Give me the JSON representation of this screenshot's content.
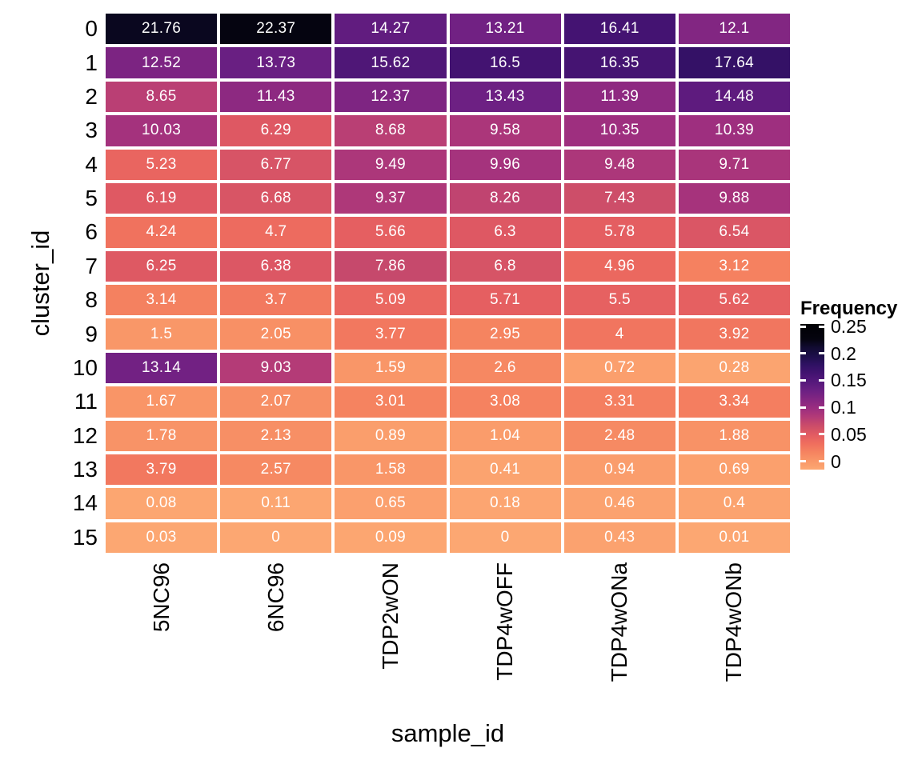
{
  "figure": {
    "background": "#ffffff"
  },
  "chart_data": {
    "type": "heatmap",
    "title": "",
    "xlabel": "sample_id",
    "ylabel": "cluster_id",
    "x_categories": [
      "5NC96",
      "6NC96",
      "TDP2wON",
      "TDP4wOFF",
      "TDP4wONa",
      "TDP4wONb"
    ],
    "y_categories": [
      "0",
      "1",
      "2",
      "3",
      "4",
      "5",
      "6",
      "7",
      "8",
      "9",
      "10",
      "11",
      "12",
      "13",
      "14",
      "15"
    ],
    "values": [
      [
        "21.76",
        "22.37",
        "14.27",
        "13.21",
        "16.41",
        "12.1"
      ],
      [
        "12.52",
        "13.73",
        "15.62",
        "16.5",
        "16.35",
        "17.64"
      ],
      [
        "8.65",
        "11.43",
        "12.37",
        "13.43",
        "11.39",
        "14.48"
      ],
      [
        "10.03",
        "6.29",
        "8.68",
        "9.58",
        "10.35",
        "10.39"
      ],
      [
        "5.23",
        "6.77",
        "9.49",
        "9.96",
        "9.48",
        "9.71"
      ],
      [
        "6.19",
        "6.68",
        "9.37",
        "8.26",
        "7.43",
        "9.88"
      ],
      [
        "4.24",
        "4.7",
        "5.66",
        "6.3",
        "5.78",
        "6.54"
      ],
      [
        "6.25",
        "6.38",
        "7.86",
        "6.8",
        "4.96",
        "3.12"
      ],
      [
        "3.14",
        "3.7",
        "5.09",
        "5.71",
        "5.5",
        "5.62"
      ],
      [
        "1.5",
        "2.05",
        "3.77",
        "2.95",
        "4",
        "3.92"
      ],
      [
        "13.14",
        "9.03",
        "1.59",
        "2.6",
        "0.72",
        "0.28"
      ],
      [
        "1.67",
        "2.07",
        "3.01",
        "3.08",
        "3.31",
        "3.34"
      ],
      [
        "1.78",
        "2.13",
        "0.89",
        "1.04",
        "2.48",
        "1.88"
      ],
      [
        "3.79",
        "2.57",
        "1.58",
        "0.41",
        "0.94",
        "0.69"
      ],
      [
        "0.08",
        "0.11",
        "0.65",
        "0.18",
        "0.46",
        "0.4"
      ],
      [
        "0.03",
        "0",
        "0.09",
        "0",
        "0.43",
        "0.01"
      ]
    ],
    "legend": {
      "title": "Frequency",
      "ticks": [
        "0.25",
        "0.2",
        "0.15",
        "0.1",
        "0.05",
        "0"
      ],
      "range": [
        0,
        0.25
      ],
      "position": "right"
    },
    "colormap": {
      "name": "magma-reversed",
      "unit": "value_percent",
      "stops": [
        [
          0,
          "#fca772"
        ],
        [
          1.5,
          "#f99768"
        ],
        [
          3,
          "#f58360"
        ],
        [
          4.5,
          "#ef6e5e"
        ],
        [
          6,
          "#e25b62"
        ],
        [
          7.5,
          "#cc4d69"
        ],
        [
          9,
          "#b43b77"
        ],
        [
          10.5,
          "#9c2e80"
        ],
        [
          12,
          "#842682"
        ],
        [
          13.5,
          "#6c2083"
        ],
        [
          15,
          "#57197c"
        ],
        [
          16.5,
          "#431371"
        ],
        [
          18,
          "#2f1163"
        ],
        [
          19.5,
          "#1d0f4a"
        ],
        [
          21,
          "#110b31"
        ],
        [
          22.4,
          "#05040f"
        ],
        [
          25,
          "#000004"
        ]
      ]
    },
    "cell_text_color": "#ffffff",
    "axis_text_color": "#000000",
    "grid_line_color": "#ffffff",
    "grid_on": false
  }
}
